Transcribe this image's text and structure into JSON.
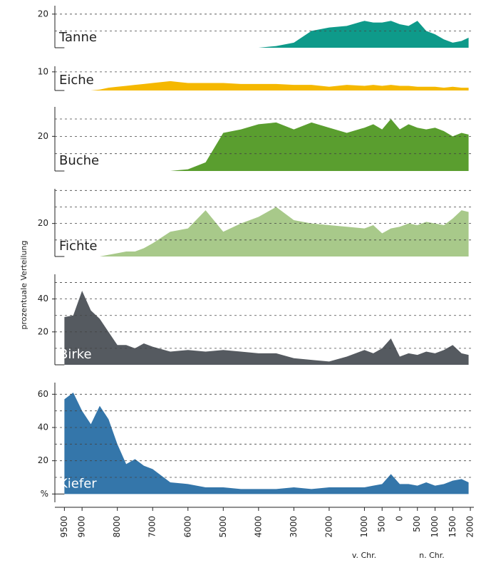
{
  "chart_data": {
    "type": "area",
    "y_label": "prozentuale Verteilung",
    "era_labels": [
      "v. Chr.",
      "n. Chr."
    ],
    "x": [
      -9500,
      -9250,
      -9000,
      -8750,
      -8500,
      -8250,
      -8000,
      -7750,
      -7500,
      -7250,
      -7000,
      -6500,
      -6000,
      -5500,
      -5000,
      -4500,
      -4000,
      -3500,
      -3000,
      -2500,
      -2000,
      -1500,
      -1000,
      -750,
      -500,
      -250,
      0,
      250,
      500,
      750,
      1000,
      1250,
      1500,
      1750,
      1950
    ],
    "xlim": [
      -9750,
      2100
    ],
    "xticks": [
      {
        "value": -9500,
        "label": "9500"
      },
      {
        "value": -9000,
        "label": "9000"
      },
      {
        "value": -8000,
        "label": "8000"
      },
      {
        "value": -7000,
        "label": "7000"
      },
      {
        "value": -6000,
        "label": "6000"
      },
      {
        "value": -5000,
        "label": "5000"
      },
      {
        "value": -4000,
        "label": "4000"
      },
      {
        "value": -3000,
        "label": "3000"
      },
      {
        "value": -2000,
        "label": "2000"
      },
      {
        "value": -1000,
        "label": "1000"
      },
      {
        "value": -500,
        "label": "500"
      },
      0,
      500,
      1000,
      1500,
      2000
    ],
    "series": [
      {
        "name": "Tanne",
        "color": "#0e9a8a",
        "label_color": "#222",
        "ylim": [
          0,
          25
        ],
        "yticks": [
          20
        ],
        "ygrid_step": 10,
        "values": [
          0,
          0,
          0,
          0,
          0,
          0,
          0,
          0,
          0,
          0,
          0,
          0,
          0,
          0,
          0,
          0,
          0,
          1,
          3,
          10,
          12,
          13,
          16,
          15,
          15,
          16,
          14,
          13,
          16,
          10,
          8,
          5,
          3,
          4,
          6
        ]
      },
      {
        "name": "Eiche",
        "color": "#f5b800",
        "label_color": "#222",
        "ylim": [
          0,
          13
        ],
        "yticks": [
          10
        ],
        "ygrid_step": 10,
        "values": [
          0,
          0,
          0,
          0,
          0.5,
          1.5,
          2,
          2.5,
          3,
          3.5,
          4,
          5,
          4,
          4,
          4,
          3.5,
          3.5,
          3.5,
          3,
          3,
          2,
          3,
          2.5,
          3,
          2.5,
          3,
          2.5,
          2.5,
          2,
          2,
          2,
          1.5,
          2,
          1.5,
          1.5
        ]
      },
      {
        "name": "Buche",
        "color": "#5a9e2f",
        "label_color": "#222",
        "ylim": [
          0,
          37
        ],
        "yticks": [
          20
        ],
        "ygrid_step": 10,
        "values": [
          0,
          0,
          0,
          0,
          0,
          0,
          0,
          0,
          0,
          0,
          0,
          0,
          1,
          5,
          22,
          24,
          27,
          28,
          24,
          28,
          25,
          22,
          25,
          27,
          24,
          30,
          24,
          27,
          25,
          24,
          25,
          23,
          20,
          22,
          21
        ]
      },
      {
        "name": "Fichte",
        "color": "#a8c98a",
        "label_color": "#222",
        "ylim": [
          0,
          41
        ],
        "yticks": [
          20
        ],
        "ygrid_step": 10,
        "values": [
          0,
          0,
          0,
          0,
          0,
          1,
          2,
          3,
          3,
          5,
          8,
          15,
          17,
          28,
          15,
          20,
          24,
          30,
          22,
          20,
          19,
          18,
          17,
          19,
          14,
          17,
          18,
          20,
          19,
          21,
          20,
          19,
          23,
          28,
          27
        ]
      },
      {
        "name": "Birke",
        "color": "#555a60",
        "label_color": "#ffffff",
        "ylim": [
          0,
          55
        ],
        "yticks": [
          20,
          40
        ],
        "ygrid_step": 10,
        "values": [
          29,
          30,
          45,
          33,
          28,
          20,
          12,
          12,
          10,
          13,
          11,
          8,
          9,
          8,
          9,
          8,
          7,
          7,
          4,
          3,
          2,
          5,
          9,
          7,
          10,
          16,
          5,
          7,
          6,
          8,
          7,
          9,
          12,
          7,
          6
        ]
      },
      {
        "name": "Kiefer",
        "color": "#3476aa",
        "label_color": "#ffffff",
        "ylim": [
          -5,
          67
        ],
        "yticks": [
          {
            "value": 0,
            "label": "%"
          },
          20,
          40,
          60
        ],
        "ygrid_step": 10,
        "values": [
          57,
          61,
          50,
          42,
          53,
          45,
          30,
          18,
          21,
          17,
          15,
          7,
          6,
          4,
          4,
          3,
          3,
          3,
          4,
          3,
          4,
          4,
          4,
          5,
          6,
          12,
          6,
          6,
          5,
          7,
          5,
          6,
          8,
          9,
          7
        ]
      }
    ]
  }
}
